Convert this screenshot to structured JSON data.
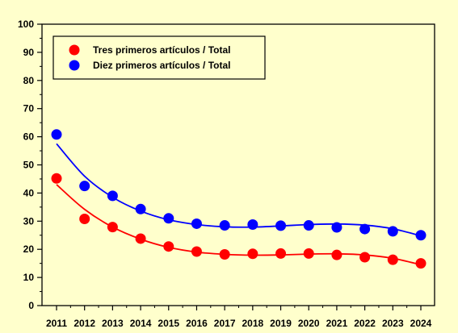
{
  "chart_data": {
    "type": "scatter",
    "title": "",
    "xlabel": "",
    "ylabel": "",
    "x": [
      2011,
      2012,
      2013,
      2014,
      2015,
      2016,
      2017,
      2018,
      2019,
      2020,
      2021,
      2022,
      2023,
      2024
    ],
    "ylim": [
      0,
      100
    ],
    "y_ticks": [
      0,
      10,
      20,
      30,
      40,
      50,
      60,
      70,
      80,
      90,
      100
    ],
    "grid": false,
    "legend_position": "top-left",
    "series": [
      {
        "name": "Tres primeros artículos / Total",
        "color": "#FF0000",
        "line_color": "#FF0000",
        "marker": "circle",
        "values": [
          45.2,
          30.8,
          27.9,
          23.8,
          21.0,
          19.2,
          18.2,
          18.4,
          18.5,
          18.5,
          18.0,
          17.2,
          16.3,
          15.0
        ],
        "fit_line": [
          43.0,
          34.2,
          27.9,
          23.6,
          20.7,
          19.0,
          18.2,
          17.9,
          18.0,
          18.3,
          18.4,
          18.0,
          16.8,
          14.5
        ]
      },
      {
        "name": "Diez primeros artículos  / Total",
        "color": "#0000FF",
        "line_color": "#0000FF",
        "marker": "circle",
        "values": [
          60.8,
          42.5,
          39.0,
          34.3,
          31.0,
          29.1,
          28.5,
          28.8,
          28.4,
          28.5,
          27.8,
          27.2,
          26.4,
          25.0
        ],
        "fit_line": [
          57.5,
          46.0,
          38.5,
          33.6,
          30.5,
          28.8,
          28.0,
          27.9,
          28.3,
          28.8,
          29.0,
          28.6,
          27.3,
          24.8
        ]
      }
    ]
  }
}
